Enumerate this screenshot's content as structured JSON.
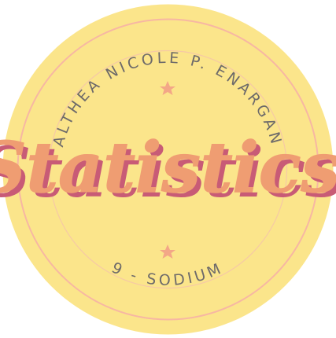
{
  "badge": {
    "name_text": "ALTHEA NICOLE P. ENARGAN",
    "title": "Statistics",
    "section_text": "9 - SODIUM"
  },
  "colors": {
    "badge_fill": "#fbe58b",
    "ring_outer": "#f7b7a3",
    "ring_inner": "#f6c9a5",
    "star": "#f3a787",
    "title_main": "#ef9d72",
    "title_shadow": "#c85b76",
    "text": "#6d6a6a"
  },
  "icons": {
    "top_decoration": "star-icon",
    "bottom_decoration": "star-icon"
  }
}
